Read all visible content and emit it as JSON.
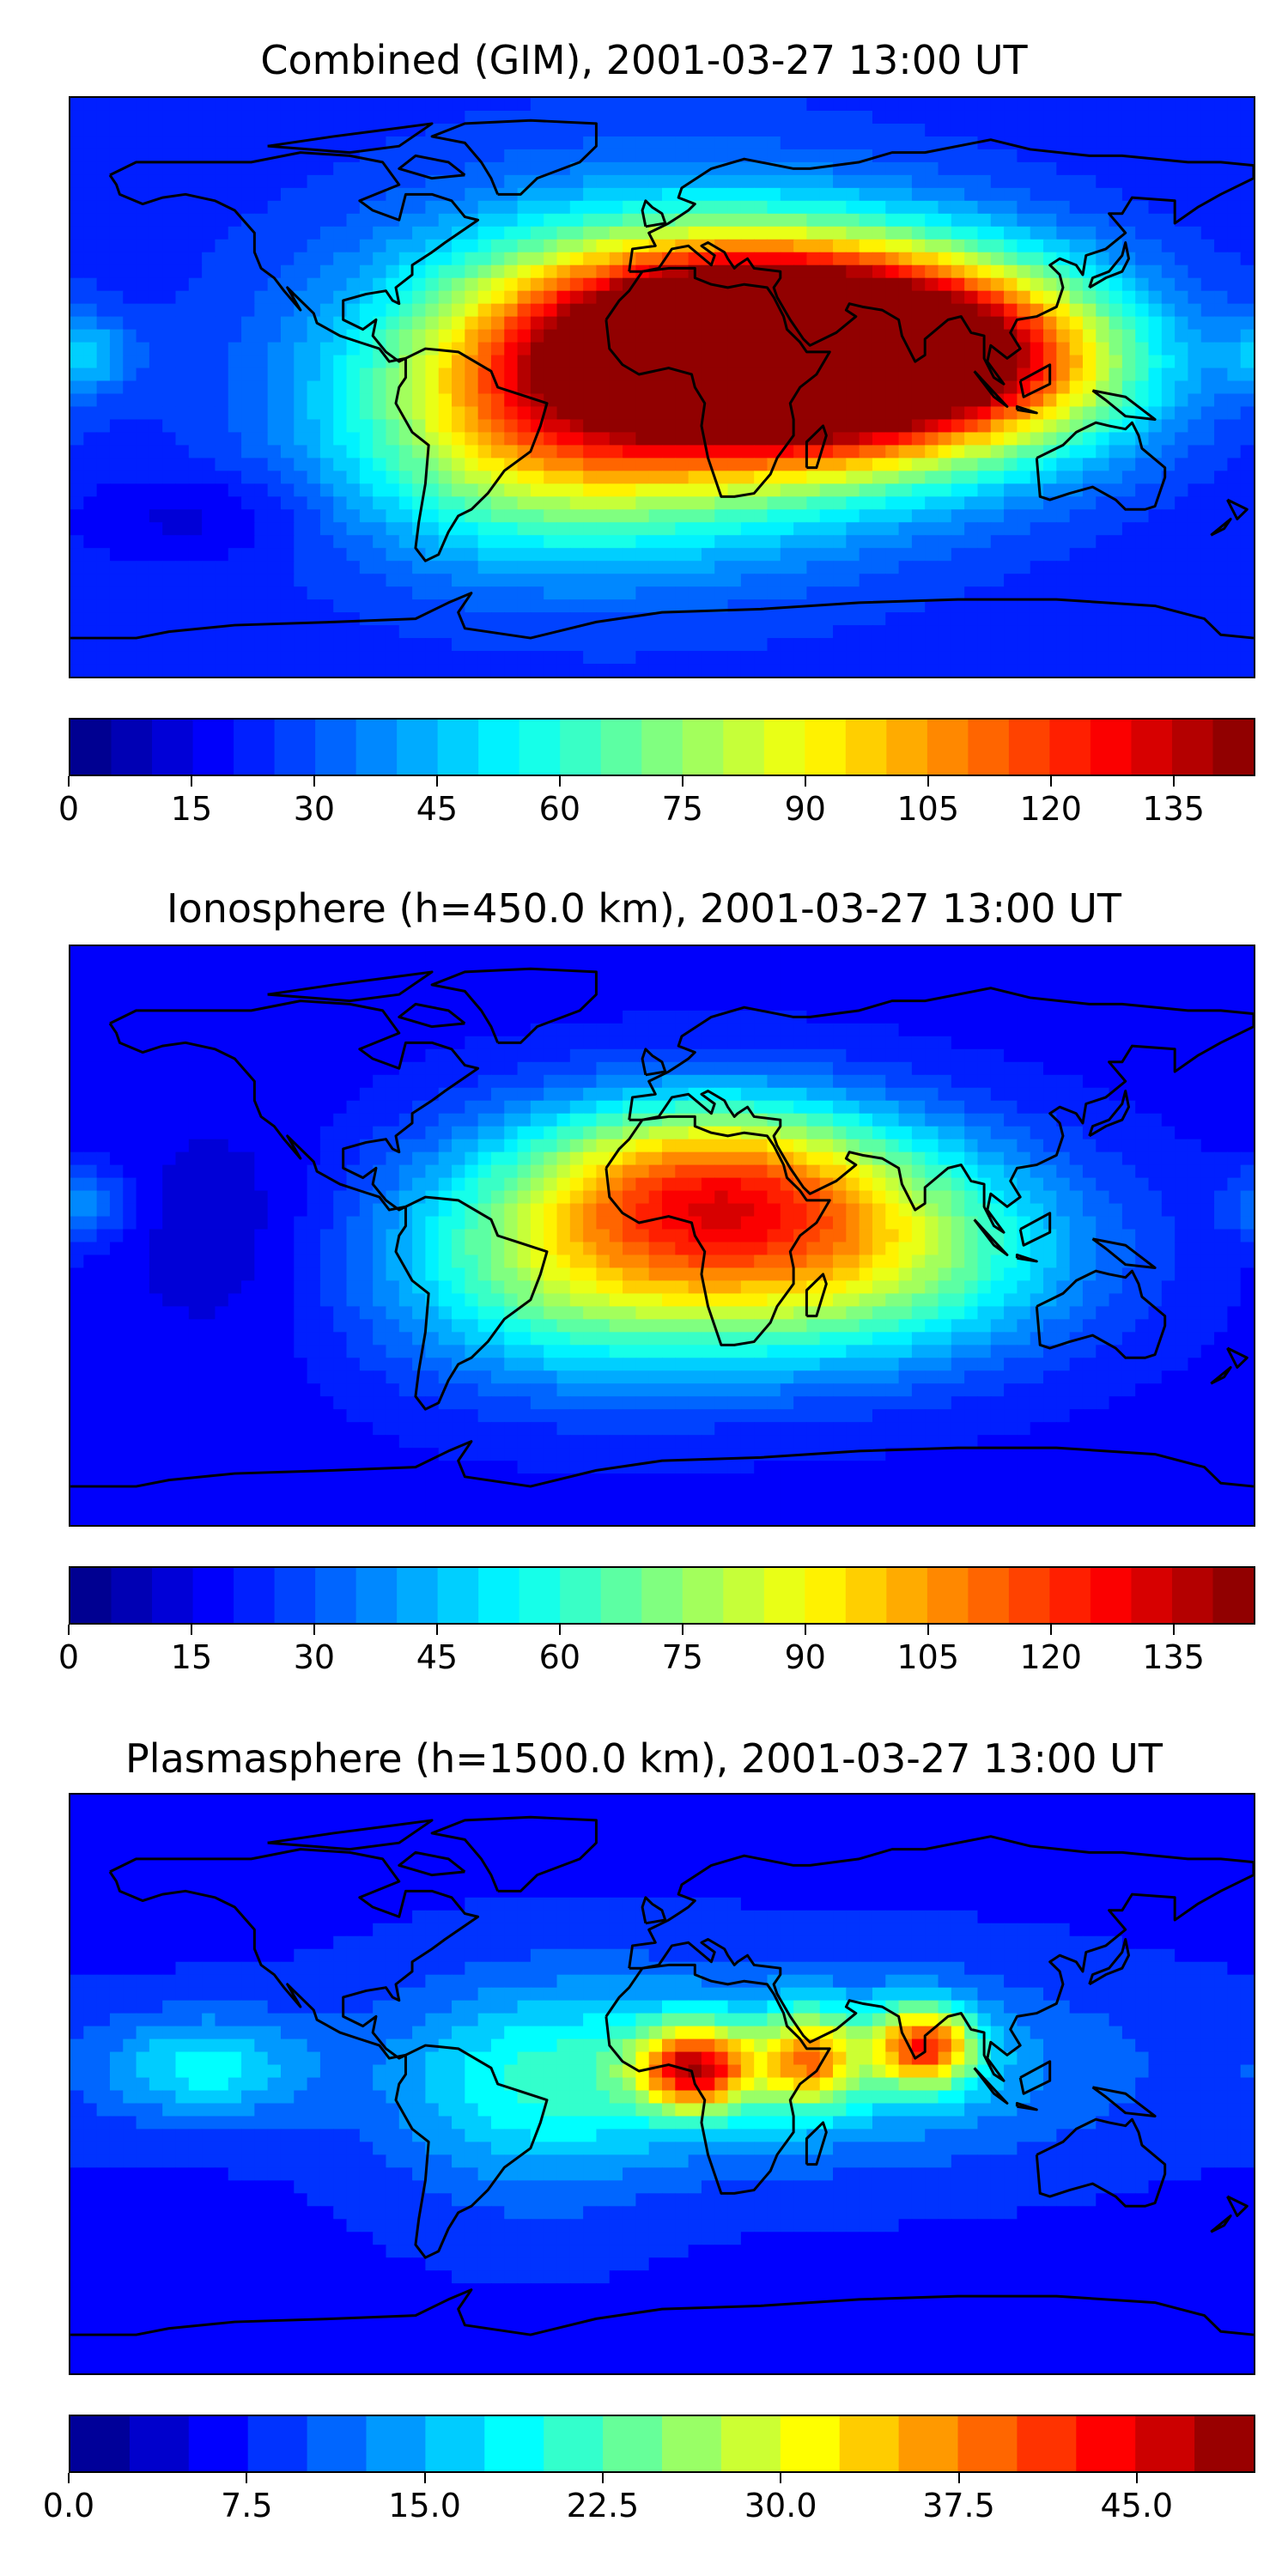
{
  "panels": [
    {
      "title": "Combined (GIM), 2001-03-27 13:00 UT",
      "colorbar": {
        "min": 0,
        "max": 145,
        "levels": 29,
        "ticks": [
          0,
          15,
          30,
          45,
          60,
          75,
          90,
          105,
          120,
          135
        ],
        "tick_labels": [
          "0",
          "15",
          "30",
          "45",
          "60",
          "75",
          "90",
          "105",
          "120",
          "135"
        ]
      },
      "background": 22,
      "field": [
        {
          "lon": 25,
          "lat": 17,
          "amp": 95,
          "slon": 50,
          "slat": 20
        },
        {
          "lon": 45,
          "lat": 5,
          "amp": 70,
          "slon": 40,
          "slat": 22
        },
        {
          "lon": 85,
          "lat": 10,
          "amp": 55,
          "slon": 35,
          "slat": 20
        },
        {
          "lon": 0,
          "lat": 5,
          "amp": 60,
          "slon": 60,
          "slat": 35
        },
        {
          "lon": -40,
          "lat": -15,
          "amp": 40,
          "slon": 40,
          "slat": 25
        },
        {
          "lon": 120,
          "lat": 5,
          "amp": 25,
          "slon": 30,
          "slat": 20
        },
        {
          "lon": -175,
          "lat": 10,
          "amp": 22,
          "slon": 10,
          "slat": 8
        },
        {
          "lon": -140,
          "lat": -40,
          "amp": -10,
          "slon": 25,
          "slat": 10
        }
      ]
    },
    {
      "title": "Ionosphere  (h=450.0 km), 2001-03-27 13:00 UT",
      "colorbar": {
        "min": 0,
        "max": 145,
        "levels": 29,
        "ticks": [
          0,
          15,
          30,
          45,
          60,
          75,
          90,
          105,
          120,
          135
        ],
        "tick_labels": [
          "0",
          "15",
          "30",
          "45",
          "60",
          "75",
          "90",
          "105",
          "120",
          "135"
        ]
      },
      "background": 18,
      "field": [
        {
          "lon": 15,
          "lat": 20,
          "amp": 55,
          "slon": 40,
          "slat": 18
        },
        {
          "lon": 20,
          "lat": -5,
          "amp": 45,
          "slon": 60,
          "slat": 25
        },
        {
          "lon": 60,
          "lat": -5,
          "amp": 35,
          "slon": 45,
          "slat": 22
        },
        {
          "lon": -30,
          "lat": -10,
          "amp": 30,
          "slon": 40,
          "slat": 25
        },
        {
          "lon": -175,
          "lat": 10,
          "amp": 18,
          "slon": 10,
          "slat": 8
        },
        {
          "lon": -130,
          "lat": 0,
          "amp": -8,
          "slon": 25,
          "slat": 25
        }
      ]
    },
    {
      "title": "Plasmasphere (h=1500.0 km), 2001-03-27 13:00 UT",
      "colorbar": {
        "min": 0,
        "max": 50,
        "levels": 20,
        "ticks": [
          0,
          7.5,
          15,
          22.5,
          30,
          37.5,
          45
        ],
        "tick_labels": [
          "0.0",
          "7.5",
          "15.0",
          "22.5",
          "30.0",
          "37.5",
          "45.0"
        ]
      },
      "background": 7,
      "field": [
        {
          "lon": 10,
          "lat": 5,
          "amp": 28,
          "slon": 12,
          "slat": 9
        },
        {
          "lon": 45,
          "lat": 8,
          "amp": 20,
          "slon": 10,
          "slat": 10
        },
        {
          "lon": 80,
          "lat": 12,
          "amp": 27,
          "slon": 11,
          "slat": 9
        },
        {
          "lon": 30,
          "lat": 5,
          "amp": 12,
          "slon": 70,
          "slat": 20
        },
        {
          "lon": -140,
          "lat": 5,
          "amp": 11,
          "slon": 22,
          "slat": 12
        },
        {
          "lon": -40,
          "lat": -5,
          "amp": 7,
          "slon": 30,
          "slat": 25
        }
      ]
    }
  ],
  "coastline": "black"
}
